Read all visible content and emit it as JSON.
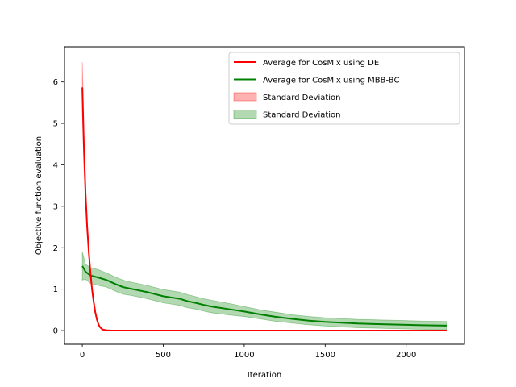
{
  "chart_data": {
    "type": "line",
    "title": "",
    "xlabel": "Iteration",
    "ylabel": "Objective function evaluation",
    "xlim": [
      -110,
      2360
    ],
    "ylim": [
      -0.33,
      6.85
    ],
    "xticks": [
      0,
      500,
      1000,
      1500,
      2000
    ],
    "yticks": [
      0,
      1,
      2,
      3,
      4,
      5,
      6
    ],
    "xtick_labels": [
      "0",
      "500",
      "1000",
      "1500",
      "2000"
    ],
    "ytick_labels": [
      "0",
      "1",
      "2",
      "3",
      "4",
      "5",
      "6"
    ],
    "grid": false,
    "legend_position": "top-right",
    "series": [
      {
        "name": "Average for CosMix using DE",
        "color": "#ff0000",
        "x": [
          0,
          10,
          20,
          30,
          40,
          50,
          60,
          70,
          80,
          90,
          100,
          110,
          120,
          130,
          150,
          170,
          200,
          300,
          500,
          1000,
          1500,
          2000,
          2250
        ],
        "y": [
          5.87,
          4.4,
          3.3,
          2.5,
          1.9,
          1.4,
          1.0,
          0.7,
          0.45,
          0.27,
          0.15,
          0.08,
          0.04,
          0.02,
          0.008,
          0.003,
          0.0,
          0.0,
          0.0,
          0.0,
          0.0,
          0.0,
          0.0
        ],
        "std_upper": [
          6.48,
          4.8,
          3.5,
          2.6,
          1.95,
          1.45,
          1.04,
          0.73,
          0.48,
          0.29,
          0.17,
          0.09,
          0.05,
          0.025,
          0.01,
          0.004,
          0.0,
          0.0,
          0.0,
          0.0,
          0.0,
          0.0,
          0.0
        ],
        "std_lower": [
          5.3,
          4.0,
          3.1,
          2.4,
          1.85,
          1.35,
          0.96,
          0.67,
          0.42,
          0.25,
          0.13,
          0.07,
          0.03,
          0.015,
          0.006,
          0.002,
          0.0,
          0.0,
          0.0,
          0.0,
          0.0,
          0.0,
          0.0
        ]
      },
      {
        "name": "Average for CosMix using MBB-BC",
        "color": "#008000",
        "x": [
          0,
          20,
          50,
          100,
          150,
          200,
          250,
          300,
          350,
          400,
          450,
          500,
          550,
          600,
          650,
          700,
          750,
          800,
          900,
          1000,
          1100,
          1200,
          1300,
          1400,
          1500,
          1600,
          1700,
          1800,
          1900,
          2000,
          2100,
          2250
        ],
        "y": [
          1.56,
          1.42,
          1.33,
          1.28,
          1.22,
          1.13,
          1.05,
          1.01,
          0.97,
          0.93,
          0.88,
          0.83,
          0.8,
          0.77,
          0.71,
          0.67,
          0.62,
          0.58,
          0.52,
          0.46,
          0.39,
          0.33,
          0.28,
          0.24,
          0.21,
          0.19,
          0.17,
          0.16,
          0.15,
          0.14,
          0.13,
          0.12
        ],
        "std_upper": [
          1.9,
          1.6,
          1.52,
          1.47,
          1.39,
          1.3,
          1.22,
          1.17,
          1.13,
          1.09,
          1.04,
          0.99,
          0.96,
          0.93,
          0.87,
          0.82,
          0.77,
          0.73,
          0.66,
          0.58,
          0.5,
          0.44,
          0.38,
          0.34,
          0.31,
          0.29,
          0.27,
          0.26,
          0.25,
          0.24,
          0.23,
          0.22
        ],
        "std_lower": [
          1.22,
          1.24,
          1.14,
          1.09,
          1.05,
          0.96,
          0.88,
          0.85,
          0.81,
          0.77,
          0.72,
          0.67,
          0.64,
          0.61,
          0.55,
          0.52,
          0.47,
          0.43,
          0.38,
          0.34,
          0.28,
          0.22,
          0.18,
          0.14,
          0.11,
          0.09,
          0.07,
          0.06,
          0.05,
          0.04,
          0.03,
          0.02
        ]
      }
    ],
    "legend_entries": [
      {
        "label": "Average for CosMix using DE",
        "kind": "line",
        "color": "#ff0000"
      },
      {
        "label": "Average for CosMix using MBB-BC",
        "kind": "line",
        "color": "#008000"
      },
      {
        "label": "Standard Deviation",
        "kind": "patch",
        "color": "#ff0000"
      },
      {
        "label": "Standard Deviation",
        "kind": "patch",
        "color": "#008000"
      }
    ]
  }
}
